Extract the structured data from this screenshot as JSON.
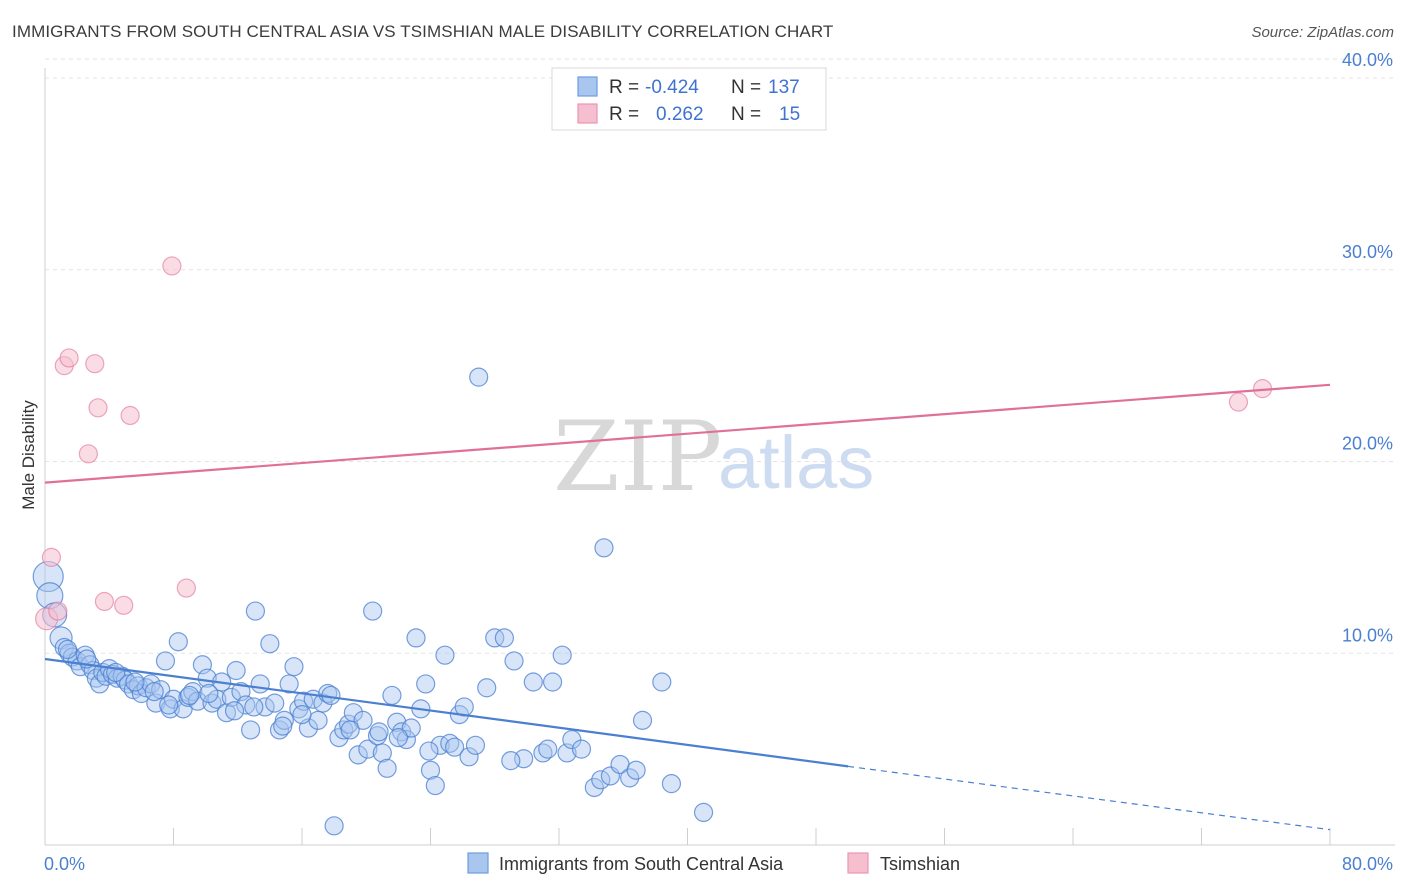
{
  "header": {
    "title": "IMMIGRANTS FROM SOUTH CENTRAL ASIA VS TSIMSHIAN MALE DISABILITY CORRELATION CHART",
    "source": "Source: ZipAtlas.com"
  },
  "watermark": {
    "zip": "ZIP",
    "atlas": "atlas"
  },
  "legend": {
    "series": [
      {
        "r_label": "R =",
        "r_value": "-0.424",
        "n_label": "N =",
        "n_value": "137"
      },
      {
        "r_label": "R =",
        "r_value": "0.262",
        "n_label": "N =",
        "n_value": "15"
      }
    ]
  },
  "bottom_legend": {
    "items": [
      {
        "label": "Immigrants from South Central Asia"
      },
      {
        "label": "Tsimshian"
      }
    ]
  },
  "chart_data": {
    "type": "scatter",
    "title": "IMMIGRANTS FROM SOUTH CENTRAL ASIA VS TSIMSHIAN MALE DISABILITY CORRELATION CHART",
    "xlabel": "",
    "ylabel": "Male Disability",
    "xlim": [
      0,
      80
    ],
    "ylim": [
      0,
      40
    ],
    "x_tick_labels": [
      "0.0%",
      "80.0%"
    ],
    "y_ticks": [
      10,
      20,
      30,
      40
    ],
    "y_tick_labels": [
      "10.0%",
      "20.0%",
      "30.0%",
      "40.0%"
    ],
    "grid": true,
    "colors": {
      "blue": "#4a7fd1",
      "blue_fill": "#a9c6ef",
      "pink": "#e0709a",
      "pink_fill": "#f6bfd0"
    },
    "series": [
      {
        "name": "Immigrants from South Central Asia",
        "color": "#4a7fd1",
        "r": -0.424,
        "n": 137,
        "trend": {
          "x0": 0,
          "y0": 9.7,
          "x1": 50,
          "y1": 4.1,
          "dashed_to_x": 80,
          "dashed_to_y": 0.8
        },
        "points": [
          [
            0.2,
            14.0
          ],
          [
            0.3,
            13.0
          ],
          [
            0.6,
            12.0
          ],
          [
            1.0,
            10.8
          ],
          [
            1.2,
            10.3
          ],
          [
            1.5,
            10.0
          ],
          [
            1.7,
            9.8
          ],
          [
            2.0,
            9.6
          ],
          [
            2.2,
            9.3
          ],
          [
            2.5,
            9.9
          ],
          [
            2.8,
            9.4
          ],
          [
            3.0,
            9.1
          ],
          [
            3.2,
            8.7
          ],
          [
            3.4,
            8.4
          ],
          [
            3.6,
            9.0
          ],
          [
            3.8,
            8.8
          ],
          [
            4.0,
            9.2
          ],
          [
            4.2,
            8.9
          ],
          [
            4.5,
            8.7
          ],
          [
            4.8,
            8.8
          ],
          [
            5.0,
            8.6
          ],
          [
            5.2,
            8.4
          ],
          [
            5.5,
            8.1
          ],
          [
            5.8,
            8.3
          ],
          [
            6.0,
            7.9
          ],
          [
            6.3,
            8.2
          ],
          [
            6.6,
            8.4
          ],
          [
            6.9,
            7.4
          ],
          [
            7.2,
            8.1
          ],
          [
            7.5,
            9.6
          ],
          [
            7.8,
            7.1
          ],
          [
            8.0,
            7.6
          ],
          [
            8.3,
            10.6
          ],
          [
            8.6,
            7.1
          ],
          [
            8.9,
            7.7
          ],
          [
            9.2,
            8.0
          ],
          [
            9.5,
            7.5
          ],
          [
            9.8,
            9.4
          ],
          [
            10.1,
            8.7
          ],
          [
            10.4,
            7.4
          ],
          [
            10.7,
            7.6
          ],
          [
            11.0,
            8.5
          ],
          [
            11.3,
            6.9
          ],
          [
            11.6,
            7.7
          ],
          [
            11.9,
            9.1
          ],
          [
            12.2,
            8.0
          ],
          [
            12.5,
            7.3
          ],
          [
            12.8,
            6.0
          ],
          [
            13.1,
            12.2
          ],
          [
            13.4,
            8.4
          ],
          [
            13.7,
            7.2
          ],
          [
            14.0,
            10.5
          ],
          [
            14.3,
            7.4
          ],
          [
            14.6,
            6.0
          ],
          [
            14.9,
            6.5
          ],
          [
            15.2,
            8.4
          ],
          [
            15.5,
            9.3
          ],
          [
            15.8,
            7.1
          ],
          [
            16.1,
            7.5
          ],
          [
            16.4,
            6.1
          ],
          [
            16.7,
            7.6
          ],
          [
            17.0,
            6.5
          ],
          [
            17.3,
            7.4
          ],
          [
            17.6,
            7.9
          ],
          [
            18.0,
            1.0
          ],
          [
            18.3,
            5.6
          ],
          [
            18.6,
            6.0
          ],
          [
            18.9,
            6.3
          ],
          [
            19.2,
            6.9
          ],
          [
            19.5,
            4.7
          ],
          [
            19.8,
            6.5
          ],
          [
            20.1,
            5.0
          ],
          [
            20.4,
            12.2
          ],
          [
            20.7,
            5.7
          ],
          [
            21.0,
            4.8
          ],
          [
            21.3,
            4.0
          ],
          [
            21.6,
            7.8
          ],
          [
            21.9,
            6.4
          ],
          [
            22.2,
            5.9
          ],
          [
            22.5,
            5.5
          ],
          [
            22.8,
            6.1
          ],
          [
            23.1,
            10.8
          ],
          [
            23.4,
            7.1
          ],
          [
            23.7,
            8.4
          ],
          [
            24.0,
            3.9
          ],
          [
            24.3,
            3.1
          ],
          [
            24.6,
            5.2
          ],
          [
            24.9,
            9.9
          ],
          [
            25.2,
            5.3
          ],
          [
            25.5,
            5.1
          ],
          [
            25.8,
            6.8
          ],
          [
            26.1,
            7.2
          ],
          [
            26.4,
            4.6
          ],
          [
            27.0,
            24.4
          ],
          [
            27.5,
            8.2
          ],
          [
            28.0,
            10.8
          ],
          [
            28.6,
            10.8
          ],
          [
            29.2,
            9.6
          ],
          [
            29.8,
            4.5
          ],
          [
            30.4,
            8.5
          ],
          [
            31.0,
            4.8
          ],
          [
            31.6,
            8.5
          ],
          [
            32.2,
            9.9
          ],
          [
            32.5,
            4.8
          ],
          [
            32.8,
            5.5
          ],
          [
            33.4,
            5.0
          ],
          [
            34.2,
            3.0
          ],
          [
            34.8,
            15.5
          ],
          [
            34.6,
            3.4
          ],
          [
            35.2,
            3.6
          ],
          [
            35.8,
            4.2
          ],
          [
            36.4,
            3.5
          ],
          [
            36.8,
            3.9
          ],
          [
            37.2,
            6.5
          ],
          [
            38.4,
            8.5
          ],
          [
            39.0,
            3.2
          ],
          [
            41.0,
            1.7
          ],
          [
            1.4,
            10.2
          ],
          [
            2.6,
            9.7
          ],
          [
            4.4,
            9.0
          ],
          [
            5.6,
            8.5
          ],
          [
            6.8,
            8.0
          ],
          [
            7.7,
            7.3
          ],
          [
            9.0,
            7.8
          ],
          [
            10.2,
            7.9
          ],
          [
            11.8,
            7.0
          ],
          [
            13.0,
            7.2
          ],
          [
            14.8,
            6.2
          ],
          [
            16.0,
            6.8
          ],
          [
            17.8,
            7.8
          ],
          [
            19.0,
            6.0
          ],
          [
            20.8,
            5.9
          ],
          [
            22.0,
            5.6
          ],
          [
            23.9,
            4.9
          ],
          [
            26.8,
            5.2
          ],
          [
            29.0,
            4.4
          ],
          [
            31.3,
            5.0
          ]
        ]
      },
      {
        "name": "Tsimshian",
        "color": "#e0709a",
        "r": 0.262,
        "n": 15,
        "trend": {
          "x0": 0,
          "y0": 18.9,
          "x1": 80,
          "y1": 24.0
        },
        "points": [
          [
            0.1,
            11.8
          ],
          [
            0.4,
            15.0
          ],
          [
            0.8,
            12.2
          ],
          [
            1.2,
            25.0
          ],
          [
            1.5,
            25.4
          ],
          [
            2.7,
            20.4
          ],
          [
            3.1,
            25.1
          ],
          [
            3.3,
            22.8
          ],
          [
            3.7,
            12.7
          ],
          [
            4.9,
            12.5
          ],
          [
            5.3,
            22.4
          ],
          [
            7.9,
            30.2
          ],
          [
            8.8,
            13.4
          ],
          [
            74.3,
            23.1
          ],
          [
            75.8,
            23.8
          ]
        ]
      }
    ]
  }
}
